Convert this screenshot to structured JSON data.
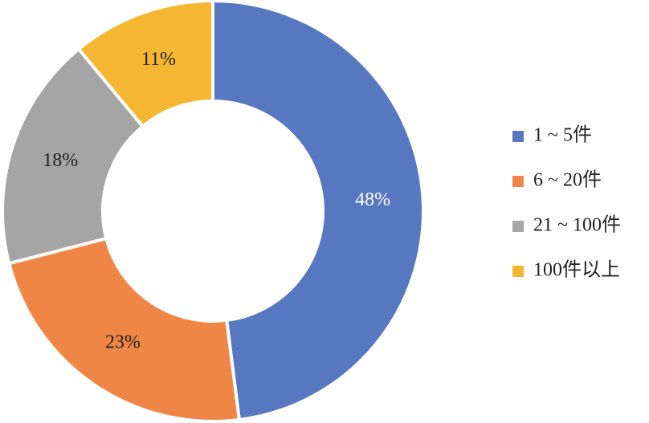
{
  "chart_data": {
    "type": "donut",
    "categories": [
      "1 ~ 5件",
      "6 ~ 20件",
      "21 ~ 100件",
      "100件以上"
    ],
    "values": [
      48,
      23,
      18,
      11
    ],
    "value_labels": [
      "48%",
      "23%",
      "18%",
      "11%"
    ],
    "colors": [
      "#5778c0",
      "#ef8646",
      "#a5a5a5",
      "#f5b731"
    ],
    "legend": "right"
  }
}
